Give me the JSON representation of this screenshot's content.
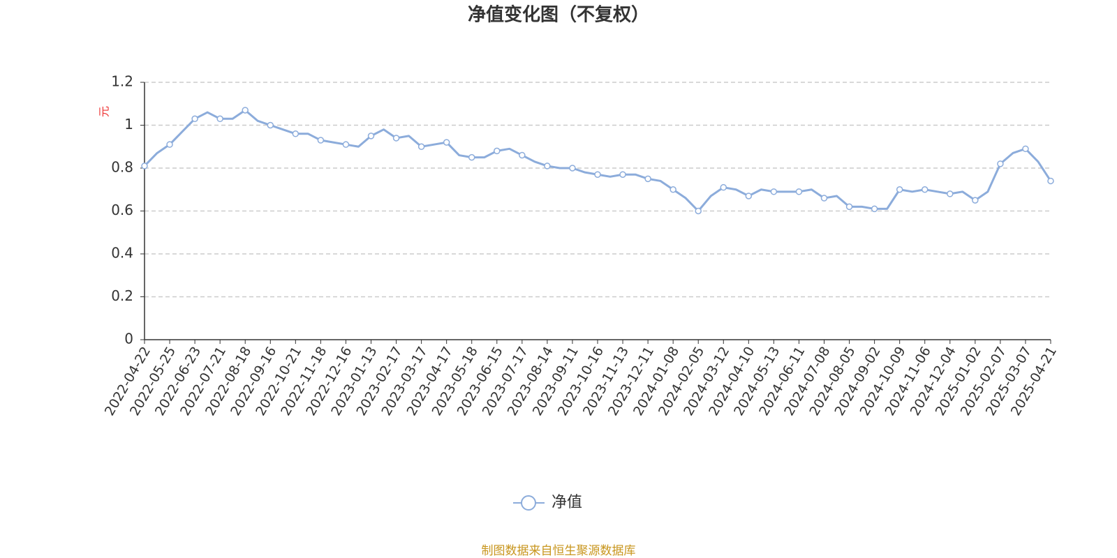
{
  "chart_data": {
    "type": "line",
    "title": "净值变化图（不复权）",
    "y_label": "元",
    "categories": [
      "2022-04-22",
      null,
      "2022-05-25",
      null,
      "2022-06-23",
      null,
      "2022-07-21",
      null,
      "2022-08-18",
      null,
      "2022-09-16",
      null,
      "2022-10-21",
      null,
      "2022-11-18",
      null,
      "2022-12-16",
      null,
      "2023-01-13",
      null,
      "2023-02-17",
      null,
      "2023-03-17",
      null,
      "2023-04-17",
      null,
      "2023-05-18",
      null,
      "2023-06-15",
      null,
      "2023-07-17",
      null,
      "2023-08-14",
      null,
      "2023-09-11",
      null,
      "2023-10-16",
      null,
      "2023-11-13",
      null,
      "2023-12-11",
      null,
      "2024-01-08",
      null,
      "2024-02-05",
      null,
      "2024-03-12",
      null,
      "2024-04-10",
      null,
      "2024-05-13",
      null,
      "2024-06-11",
      null,
      "2024-07-08",
      null,
      "2024-08-05",
      null,
      "2024-09-02",
      null,
      "2024-10-09",
      null,
      "2024-11-06",
      null,
      "2024-12-04",
      null,
      "2025-01-02",
      null,
      "2025-02-07",
      null,
      "2025-03-07",
      null,
      "2025-04-21"
    ],
    "series": [
      {
        "name": "净值",
        "color": "#8cacdb",
        "values": [
          0.81,
          0.87,
          0.91,
          0.97,
          1.03,
          1.06,
          1.03,
          1.03,
          1.07,
          1.02,
          1.0,
          0.98,
          0.96,
          0.96,
          0.93,
          0.92,
          0.91,
          0.9,
          0.95,
          0.98,
          0.94,
          0.95,
          0.9,
          0.91,
          0.92,
          0.86,
          0.85,
          0.85,
          0.88,
          0.89,
          0.86,
          0.83,
          0.81,
          0.8,
          0.8,
          0.78,
          0.77,
          0.76,
          0.77,
          0.77,
          0.75,
          0.74,
          0.7,
          0.66,
          0.6,
          0.67,
          0.71,
          0.7,
          0.67,
          0.7,
          0.69,
          0.69,
          0.69,
          0.7,
          0.66,
          0.67,
          0.62,
          0.62,
          0.61,
          0.61,
          0.7,
          0.69,
          0.7,
          0.69,
          0.68,
          0.69,
          0.65,
          0.69,
          0.82,
          0.87,
          0.89,
          0.83,
          0.74
        ]
      }
    ],
    "ylim": [
      0,
      1.2
    ],
    "yticks": [
      0,
      0.2,
      0.4,
      0.6,
      0.8,
      {
        "value": 1,
        "label": "1"
      },
      1.2
    ],
    "grid": true,
    "source": "制图数据来自恒生聚源数据库"
  }
}
